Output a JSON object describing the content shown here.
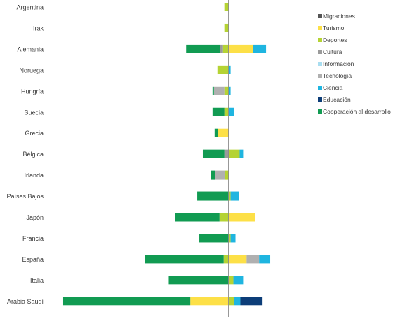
{
  "chart_data": {
    "type": "bar",
    "orientation": "horizontal",
    "stacked": "diverging",
    "grid": false,
    "legend_position": "right",
    "categories": [
      "Argentina",
      "Irak",
      "Alemania",
      "Noruega",
      "Hungría",
      "Suecia",
      "Grecia",
      "Bélgica",
      "Irlanda",
      "Países Bajos",
      "Japón",
      "Francia",
      "España",
      "Italia",
      "Arabia Saudí"
    ],
    "series": [
      {
        "name": "Migraciones",
        "color": "#555555",
        "values": [
          0,
          0,
          0,
          0,
          0,
          0,
          0,
          0,
          0,
          0,
          0,
          0,
          0,
          0,
          0
        ]
      },
      {
        "name": "Turismo",
        "color": "#fde047",
        "values": [
          0,
          0,
          35,
          0,
          0,
          0,
          -15,
          0,
          0,
          0,
          38,
          0,
          26,
          0,
          -55
        ]
      },
      {
        "name": "Deportes",
        "color": "#b5d334",
        "values": [
          -6,
          -6,
          -8,
          -16,
          -6,
          -6,
          0,
          16,
          -5,
          3,
          -13,
          3,
          -7,
          7,
          8
        ]
      },
      {
        "name": "Cultura",
        "color": "#9a9a9a",
        "values": [
          0,
          0,
          -4,
          0,
          0,
          0,
          0,
          -6,
          0,
          0,
          0,
          0,
          0,
          0,
          0
        ]
      },
      {
        "name": "Información",
        "color": "#a8ddf0",
        "values": [
          0,
          0,
          0,
          0,
          0,
          0,
          0,
          0,
          0,
          0,
          0,
          0,
          0,
          0,
          0
        ]
      },
      {
        "name": "Tecnología",
        "color": "#b0b0b0",
        "values": [
          0,
          0,
          0,
          0,
          -15,
          0,
          0,
          0,
          -14,
          0,
          0,
          0,
          18,
          0,
          0
        ]
      },
      {
        "name": "Ciencia",
        "color": "#1fb5e0",
        "values": [
          0,
          0,
          19,
          3,
          3,
          8,
          0,
          5,
          0,
          12,
          0,
          7,
          16,
          14,
          9
        ]
      },
      {
        "name": "Educación",
        "color": "#0c3d78",
        "values": [
          0,
          0,
          0,
          0,
          0,
          0,
          0,
          0,
          0,
          0,
          0,
          0,
          0,
          0,
          32
        ]
      },
      {
        "name": "Cooperación al desarrollo",
        "color": "#119b52",
        "values": [
          0,
          0,
          -49,
          0,
          -2,
          -17,
          -5,
          -31,
          -6,
          -45,
          -64,
          -42,
          -113,
          -86,
          -183
        ]
      }
    ],
    "xlim": [
      -240,
      62
    ]
  }
}
